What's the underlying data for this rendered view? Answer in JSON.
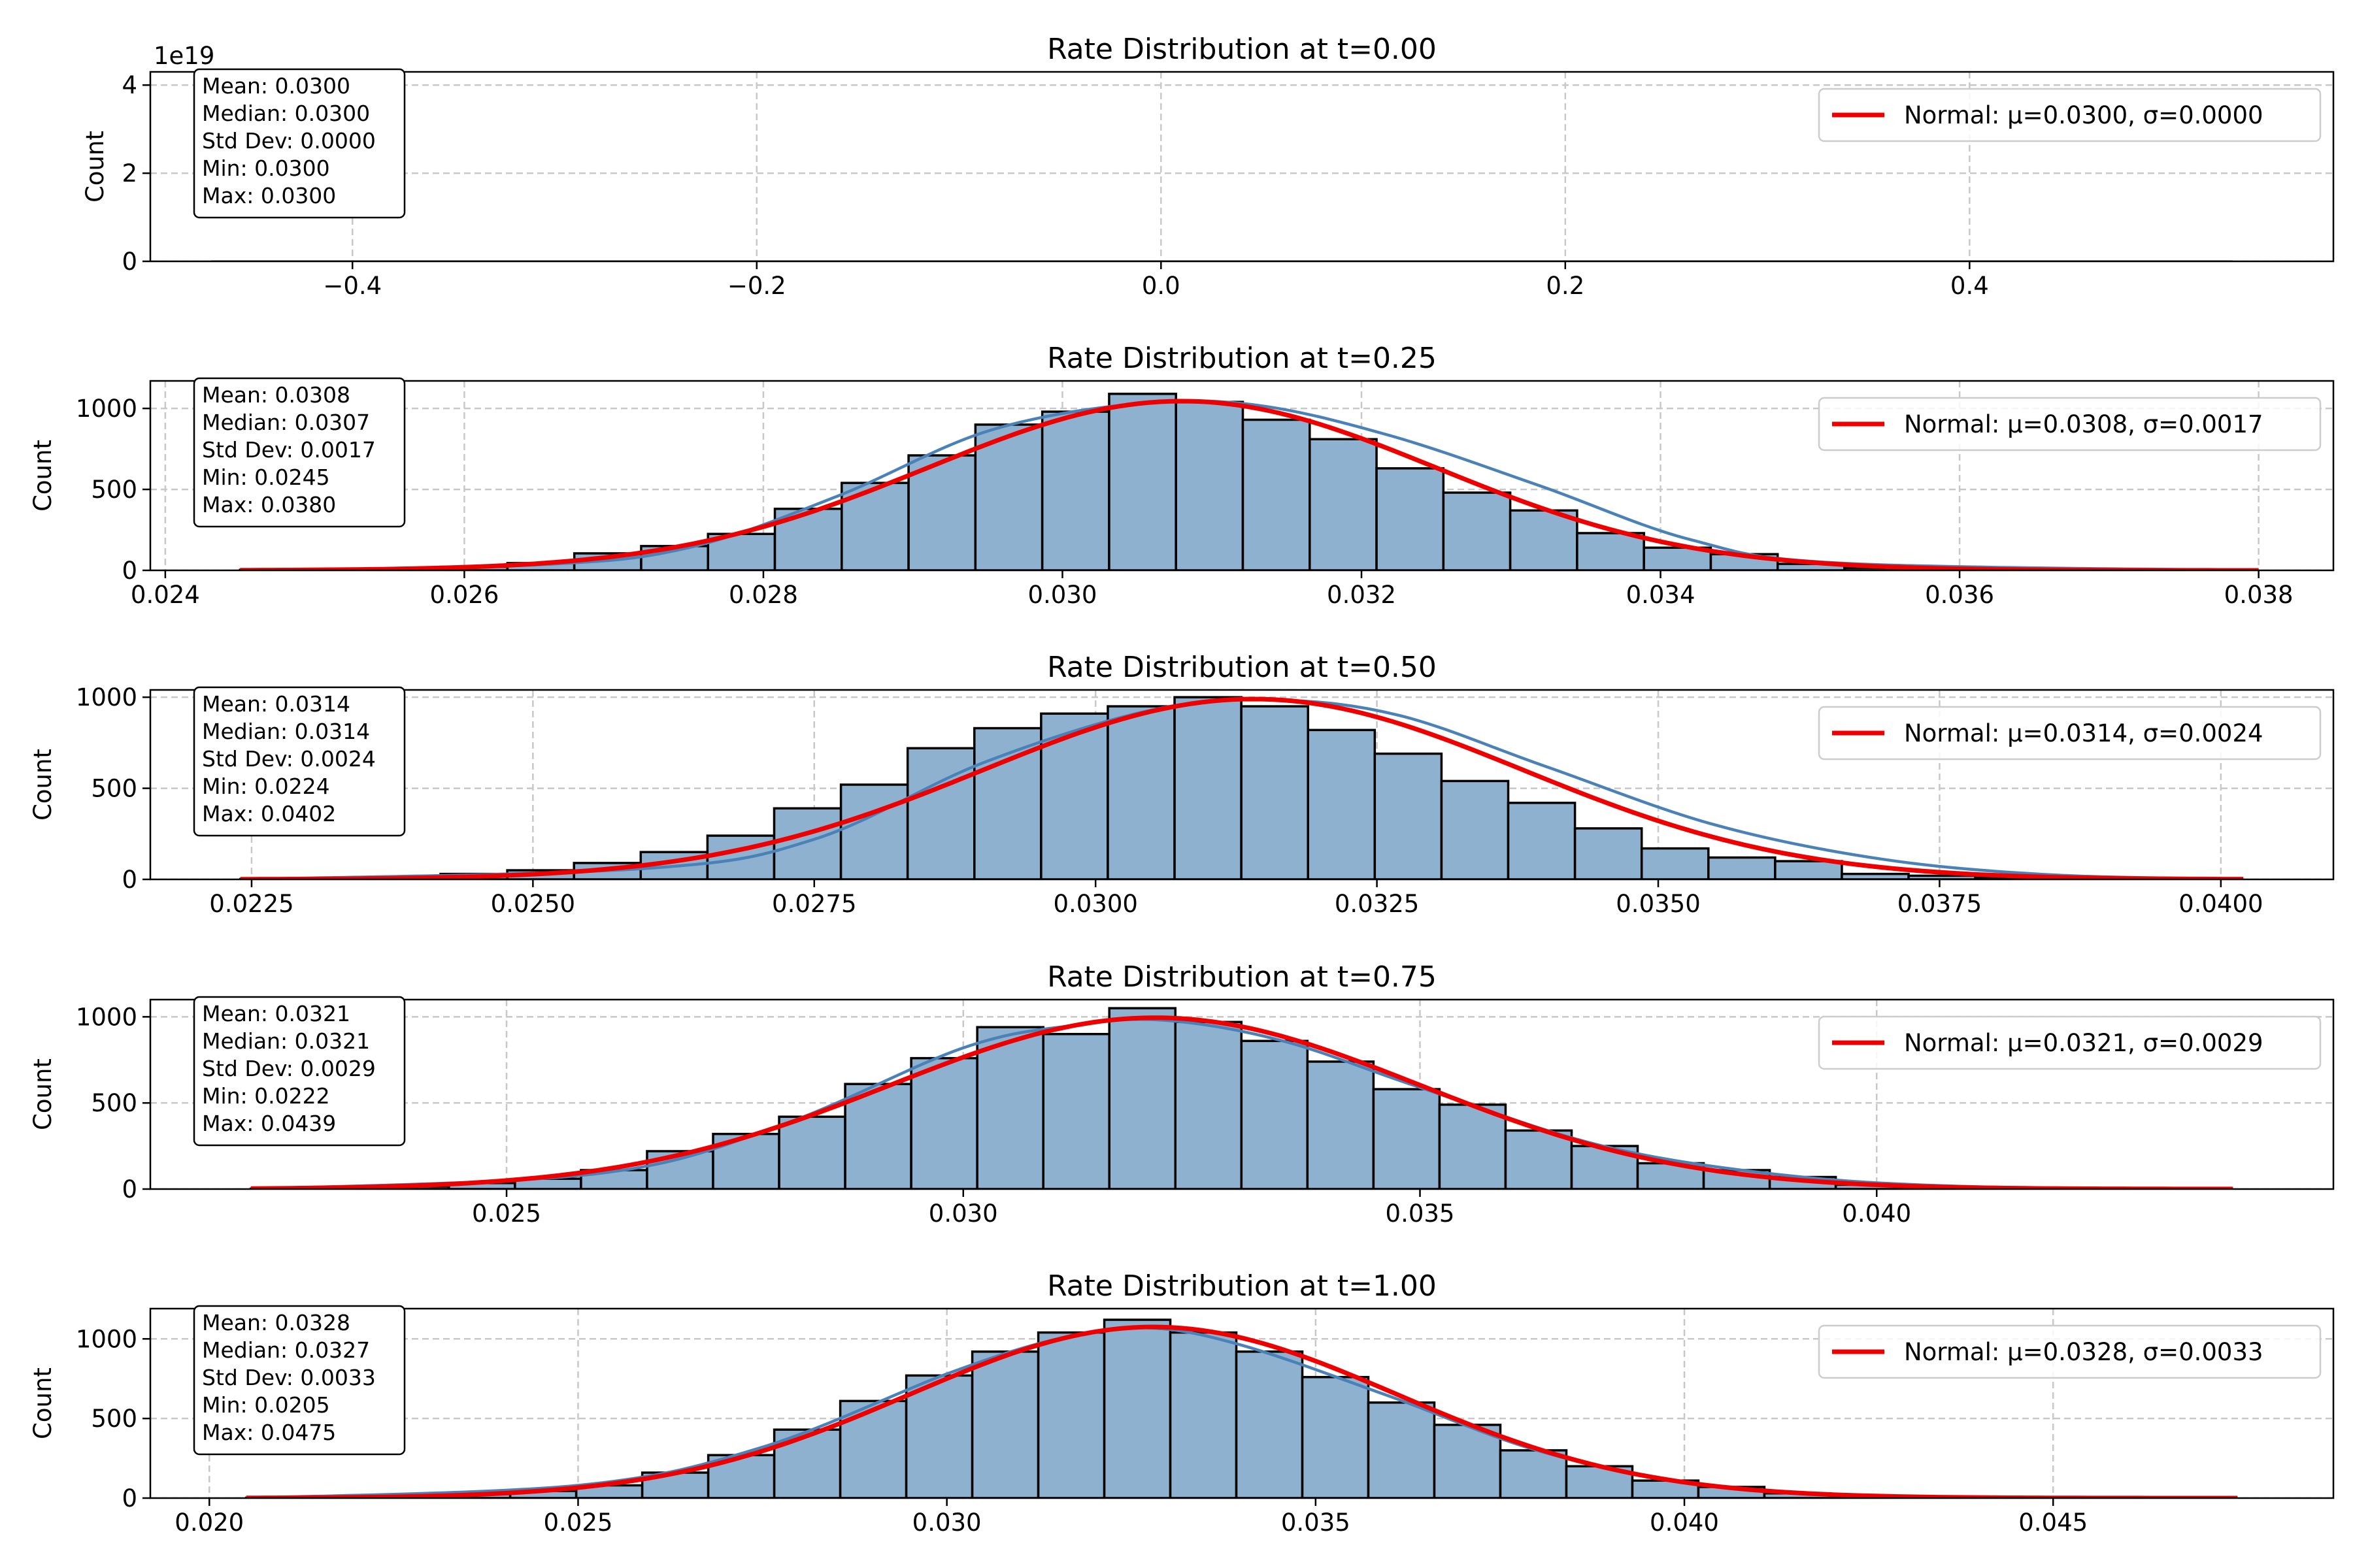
{
  "chart_data": [
    {
      "type": "bar",
      "title": "Rate Distribution at t=0.00",
      "ylabel": "Count",
      "y_offset_label": "1e19",
      "xlim": [
        -0.5,
        0.58
      ],
      "ylim": [
        0,
        4.3
      ],
      "xticks": [
        -0.4,
        -0.2,
        0.0,
        0.2,
        0.4
      ],
      "xtick_labels": [
        "−0.4",
        "−0.2",
        "0.0",
        "0.2",
        "0.4"
      ],
      "yticks": [
        0,
        2,
        4
      ],
      "ytick_labels": [
        "0",
        "2",
        "4"
      ],
      "bins": [],
      "kde": [],
      "normal": {
        "mu": 0.03,
        "sigma": 0.0,
        "label": "Normal: μ=0.0300, σ=0.0000",
        "x_range": [
          -0.47,
          0.53
        ],
        "flat": true
      },
      "stats": [
        "Mean: 0.0300",
        "Median: 0.0300",
        "Std Dev: 0.0000",
        "Min: 0.0300",
        "Max: 0.0300"
      ],
      "grid": true,
      "legend_placement": "upper right"
    },
    {
      "type": "bar",
      "title": "Rate Distribution at t=0.25",
      "ylabel": "Count",
      "xlim": [
        0.0239,
        0.0385
      ],
      "ylim": [
        0,
        1170
      ],
      "xticks": [
        0.024,
        0.026,
        0.028,
        0.03,
        0.032,
        0.034,
        0.036,
        0.038
      ],
      "xtick_labels": [
        "0.024",
        "0.026",
        "0.028",
        "0.030",
        "0.032",
        "0.034",
        "0.036",
        "0.038"
      ],
      "yticks": [
        0,
        500,
        1000
      ],
      "ytick_labels": [
        "0",
        "500",
        "1000"
      ],
      "bins": {
        "start": 0.0245,
        "width": 0.0004471,
        "counts": [
          3,
          5,
          10,
          22,
          45,
          105,
          150,
          225,
          380,
          540,
          710,
          900,
          980,
          1090,
          1040,
          930,
          810,
          630,
          480,
          370,
          230,
          140,
          100,
          40,
          15,
          7,
          3,
          2,
          1,
          1
        ]
      },
      "kde": {
        "x": [
          0.0245,
          0.0265,
          0.0275,
          0.0285,
          0.0295,
          0.0305,
          0.0313,
          0.0322,
          0.0332,
          0.0342,
          0.0352,
          0.038
        ],
        "y": [
          0,
          35,
          140,
          460,
          860,
          1030,
          1020,
          830,
          520,
          190,
          45,
          0
        ]
      },
      "normal": {
        "mu": 0.0308,
        "sigma": 0.0017,
        "label": "Normal: μ=0.0308, σ=0.0017",
        "x_range": [
          0.0245,
          0.038
        ],
        "peak": 1045
      },
      "stats": [
        "Mean: 0.0308",
        "Median: 0.0307",
        "Std Dev: 0.0017",
        "Min: 0.0245",
        "Max: 0.0380"
      ],
      "grid": true,
      "legend_placement": "upper right"
    },
    {
      "type": "bar",
      "title": "Rate Distribution at t=0.50",
      "ylabel": "Count",
      "xlim": [
        0.0216,
        0.041
      ],
      "ylim": [
        0,
        1040
      ],
      "xticks": [
        0.0225,
        0.025,
        0.0275,
        0.03,
        0.0325,
        0.035,
        0.0375,
        0.04
      ],
      "xtick_labels": [
        "0.0225",
        "0.0250",
        "0.0275",
        "0.0300",
        "0.0325",
        "0.0350",
        "0.0375",
        "0.0400"
      ],
      "yticks": [
        0,
        500,
        1000
      ],
      "ytick_labels": [
        "0",
        "500",
        "1000"
      ],
      "bins": {
        "start": 0.0224,
        "width": 0.000593,
        "counts": [
          2,
          5,
          12,
          30,
          50,
          90,
          150,
          240,
          390,
          520,
          720,
          830,
          910,
          950,
          1000,
          950,
          820,
          690,
          540,
          420,
          280,
          170,
          120,
          100,
          30,
          20,
          8,
          3,
          2,
          1
        ]
      },
      "kde": {
        "x": [
          0.0224,
          0.026,
          0.0275,
          0.029,
          0.0305,
          0.0316,
          0.0327,
          0.034,
          0.0355,
          0.037,
          0.0385,
          0.0402
        ],
        "y": [
          0,
          60,
          220,
          640,
          930,
          985,
          900,
          620,
          300,
          110,
          25,
          0
        ]
      },
      "normal": {
        "mu": 0.0314,
        "sigma": 0.0024,
        "label": "Normal: μ=0.0314, σ=0.0024",
        "x_range": [
          0.0224,
          0.0402
        ],
        "peak": 990
      },
      "stats": [
        "Mean: 0.0314",
        "Median: 0.0314",
        "Std Dev: 0.0024",
        "Min: 0.0224",
        "Max: 0.0402"
      ],
      "grid": true,
      "legend_placement": "upper right"
    },
    {
      "type": "bar",
      "title": "Rate Distribution at t=0.75",
      "ylabel": "Count",
      "xlim": [
        0.0211,
        0.045
      ],
      "ylim": [
        0,
        1100
      ],
      "xticks": [
        0.025,
        0.03,
        0.035,
        0.04
      ],
      "xtick_labels": [
        "0.025",
        "0.030",
        "0.035",
        "0.040"
      ],
      "yticks": [
        0,
        500,
        1000
      ],
      "ytick_labels": [
        "0",
        "500",
        "1000"
      ],
      "bins": {
        "start": 0.0222,
        "width": 0.000723,
        "counts": [
          2,
          6,
          15,
          35,
          60,
          110,
          220,
          320,
          420,
          610,
          760,
          940,
          900,
          1050,
          970,
          860,
          740,
          580,
          490,
          340,
          250,
          150,
          110,
          70,
          25,
          10,
          4,
          2,
          1,
          1
        ]
      },
      "kde": {
        "x": [
          0.0222,
          0.026,
          0.028,
          0.03,
          0.0312,
          0.0322,
          0.0335,
          0.035,
          0.037,
          0.039,
          0.041,
          0.0439
        ],
        "y": [
          0,
          90,
          370,
          820,
          950,
          980,
          860,
          590,
          250,
          80,
          15,
          0
        ]
      },
      "normal": {
        "mu": 0.0321,
        "sigma": 0.0029,
        "label": "Normal: μ=0.0321, σ=0.0029",
        "x_range": [
          0.0222,
          0.0439
        ],
        "peak": 995
      },
      "stats": [
        "Mean: 0.0321",
        "Median: 0.0321",
        "Std Dev: 0.0029",
        "Min: 0.0222",
        "Max: 0.0439"
      ],
      "grid": true,
      "legend_placement": "upper right"
    },
    {
      "type": "bar",
      "title": "Rate Distribution at t=1.00",
      "ylabel": "Count",
      "xlim": [
        0.0192,
        0.0488
      ],
      "ylim": [
        0,
        1190
      ],
      "xticks": [
        0.02,
        0.025,
        0.03,
        0.035,
        0.04,
        0.045
      ],
      "xtick_labels": [
        "0.020",
        "0.025",
        "0.030",
        "0.035",
        "0.040",
        "0.045"
      ],
      "yticks": [
        0,
        500,
        1000
      ],
      "ytick_labels": [
        "0",
        "500",
        "1000"
      ],
      "bins": {
        "start": 0.0205,
        "width": 0.000895,
        "counts": [
          2,
          4,
          10,
          25,
          45,
          80,
          160,
          270,
          430,
          610,
          770,
          920,
          1040,
          1120,
          1040,
          920,
          760,
          600,
          460,
          300,
          200,
          110,
          70,
          30,
          12,
          5,
          2,
          1,
          1,
          1
        ]
      },
      "kde": {
        "x": [
          0.0205,
          0.025,
          0.0275,
          0.03,
          0.0315,
          0.0327,
          0.034,
          0.036,
          0.038,
          0.04,
          0.0425,
          0.0475
        ],
        "y": [
          0,
          80,
          320,
          780,
          1000,
          1070,
          960,
          640,
          300,
          100,
          15,
          0
        ]
      },
      "normal": {
        "mu": 0.0328,
        "sigma": 0.0033,
        "label": "Normal: μ=0.0328, σ=0.0033",
        "x_range": [
          0.0205,
          0.0475
        ],
        "peak": 1075
      },
      "stats": [
        "Mean: 0.0328",
        "Median: 0.0327",
        "Std Dev: 0.0033",
        "Min: 0.0205",
        "Max: 0.0475"
      ],
      "grid": true,
      "legend_placement": "upper right"
    }
  ],
  "colors": {
    "bar_fill": "#8eb1d0",
    "bar_edge": "#000000",
    "kde_line": "#4a82b8",
    "normal_line": "#ee0000",
    "grid": "#c8c8c8"
  }
}
